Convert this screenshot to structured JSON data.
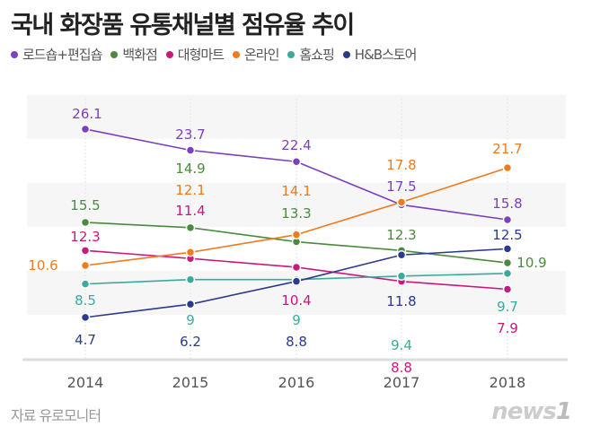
{
  "chart_data": {
    "type": "line",
    "title": "국내 화장품 유통채널별 점유율 추이",
    "categories": [
      "2014",
      "2015",
      "2016",
      "2017",
      "2018"
    ],
    "ylim": [
      0,
      30
    ],
    "grid": "horizontal bands",
    "legend_position": "top-left",
    "series": [
      {
        "name": "로드숍+편집숍",
        "color": "#7b3fbf",
        "values": [
          26.1,
          23.7,
          22.4,
          17.5,
          15.8
        ]
      },
      {
        "name": "백화점",
        "color": "#4b8a3e",
        "values": [
          15.5,
          14.9,
          13.3,
          12.3,
          10.9
        ]
      },
      {
        "name": "대형마트",
        "color": "#c8197c",
        "values": [
          12.3,
          11.4,
          10.4,
          8.8,
          7.9
        ]
      },
      {
        "name": "온라인",
        "color": "#f07a1c",
        "values": [
          10.6,
          12.1,
          14.1,
          17.8,
          21.7
        ]
      },
      {
        "name": "홈쇼핑",
        "color": "#3aab9a",
        "values": [
          8.5,
          9,
          9,
          9.4,
          9.7
        ]
      },
      {
        "name": "H&B스토어",
        "color": "#2b3a8c",
        "values": [
          4.7,
          6.2,
          8.8,
          11.8,
          12.5
        ]
      }
    ]
  },
  "source": "자료 유로모니터",
  "logo": "news1"
}
